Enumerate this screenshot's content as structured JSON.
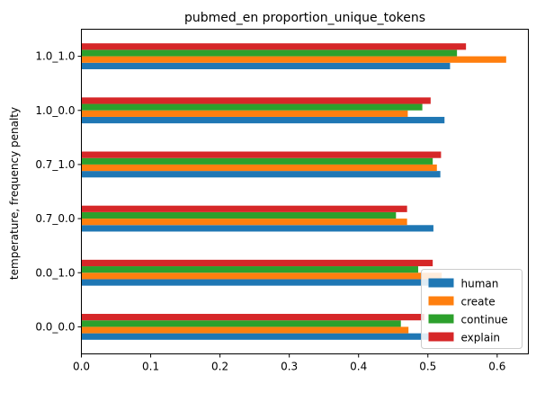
{
  "chart_data": {
    "type": "bar",
    "orientation": "horizontal",
    "title": "pubmed_en proportion_unique_tokens",
    "xlabel": "",
    "ylabel": "temperature, frequency penalty",
    "categories": [
      "0.0_0.0",
      "0.0_1.0",
      "0.7_0.0",
      "0.7_1.0",
      "1.0_0.0",
      "1.0_1.0"
    ],
    "series": [
      {
        "name": "human",
        "color": "#1f77b4",
        "values": [
          0.53,
          0.53,
          0.508,
          0.518,
          0.524,
          0.532
        ]
      },
      {
        "name": "create",
        "color": "#ff7f0e",
        "values": [
          0.472,
          0.52,
          0.47,
          0.513,
          0.471,
          0.613
        ]
      },
      {
        "name": "continue",
        "color": "#2ca02c",
        "values": [
          0.461,
          0.486,
          0.454,
          0.507,
          0.492,
          0.542
        ]
      },
      {
        "name": "explain",
        "color": "#d62728",
        "values": [
          0.495,
          0.507,
          0.47,
          0.519,
          0.504,
          0.555
        ]
      }
    ],
    "xlim": [
      0,
      0.645
    ],
    "xticks": [
      0.0,
      0.1,
      0.2,
      0.3,
      0.4,
      0.5,
      0.6
    ],
    "xtick_labels": [
      "0.0",
      "0.1",
      "0.2",
      "0.3",
      "0.4",
      "0.5",
      "0.6"
    ],
    "grid": false,
    "legend_position": "lower-right"
  }
}
